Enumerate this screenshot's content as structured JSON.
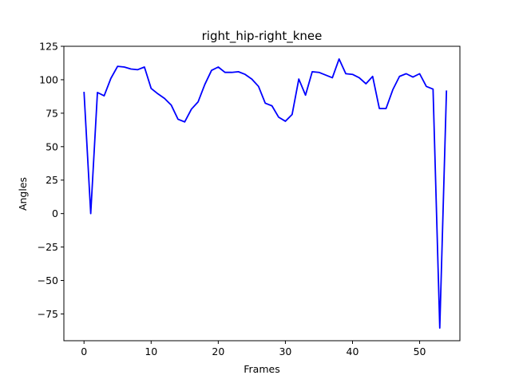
{
  "chart_data": {
    "type": "line",
    "title": "right_hip-right_knee",
    "xlabel": "Frames",
    "ylabel": "Angles",
    "xlim": [
      -3,
      56
    ],
    "ylim": [
      -95,
      125
    ],
    "xticks": [
      0,
      10,
      20,
      30,
      40,
      50
    ],
    "yticks": [
      -75,
      -50,
      -25,
      0,
      25,
      50,
      75,
      100,
      125
    ],
    "grid": false,
    "legend": "none",
    "series": [
      {
        "color": "#0000ff",
        "x": [
          0,
          1,
          2,
          3,
          4,
          5,
          6,
          7,
          8,
          9,
          10,
          11,
          12,
          13,
          14,
          15,
          16,
          17,
          18,
          19,
          20,
          21,
          22,
          23,
          24,
          25,
          26,
          27,
          28,
          29,
          30,
          31,
          32,
          33,
          34,
          35,
          36,
          37,
          38,
          39,
          40,
          41,
          42,
          43,
          44,
          45,
          46,
          47,
          48,
          49,
          50,
          51,
          52,
          53,
          54
        ],
        "values": [
          91,
          0,
          90.5,
          88,
          101,
          110,
          109.5,
          108,
          107.5,
          109.5,
          93.5,
          89.5,
          86,
          81,
          70.5,
          68.5,
          78,
          83.5,
          96.5,
          107,
          109.5,
          105.5,
          105.5,
          106,
          104,
          100.5,
          95,
          82.5,
          80.5,
          72,
          69,
          74,
          100.5,
          88.5,
          106,
          105.5,
          103.5,
          101.5,
          115.5,
          104.5,
          104,
          101.5,
          97,
          102.5,
          78.5,
          78.5,
          92.5,
          102.5,
          104.5,
          102,
          104.5,
          95,
          93,
          -85.5,
          92
        ]
      }
    ]
  }
}
